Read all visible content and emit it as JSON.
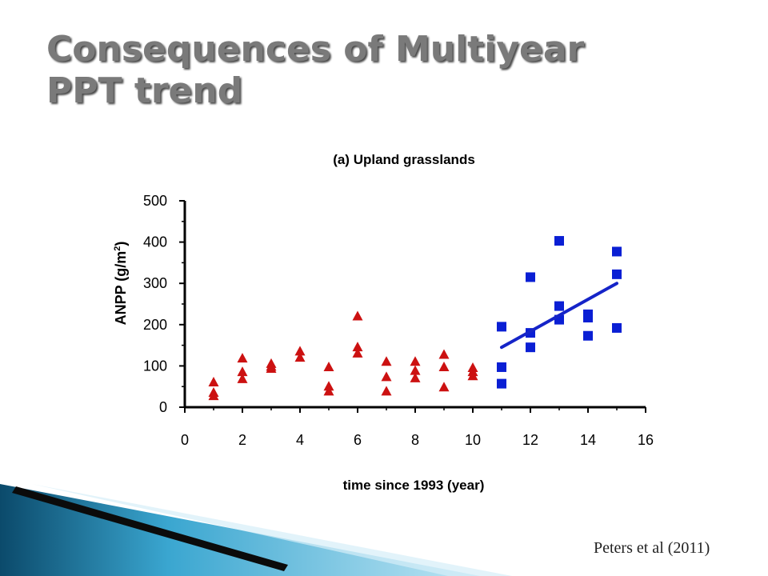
{
  "slide": {
    "title_line1": "Consequences of Multiyear",
    "title_line2": "PPT trend",
    "citation": "Peters et al (2011)"
  },
  "colors": {
    "title": "#7a7a7a",
    "series_triangles": "#cc1111",
    "series_squares": "#0a1fd4",
    "trend_line": "#1524c8",
    "axis": "#000000",
    "ribbon_dark": "#0b3d57",
    "ribbon_light": "#8fd0ea"
  },
  "chart_data": {
    "type": "scatter",
    "title": "(a) Upland grasslands",
    "xlabel": "time since 1993 (year)",
    "ylabel_main": "ANPP (g/m",
    "ylabel_sup": "2",
    "ylabel_close": ")",
    "xlim": [
      0,
      16
    ],
    "ylim": [
      0,
      500
    ],
    "xticks": [
      0,
      2,
      4,
      6,
      8,
      10,
      12,
      14,
      16
    ],
    "yticks": [
      0,
      100,
      200,
      300,
      400,
      500
    ],
    "grid": false,
    "legend": "none",
    "series": [
      {
        "marker": "triangle",
        "points": [
          [
            1,
            60
          ],
          [
            1,
            35
          ],
          [
            1,
            27
          ],
          [
            2,
            118
          ],
          [
            2,
            85
          ],
          [
            2,
            68
          ],
          [
            3,
            105
          ],
          [
            3,
            98
          ],
          [
            3,
            93
          ],
          [
            4,
            135
          ],
          [
            4,
            120
          ],
          [
            5,
            97
          ],
          [
            5,
            50
          ],
          [
            5,
            38
          ],
          [
            6,
            220
          ],
          [
            6,
            145
          ],
          [
            6,
            130
          ],
          [
            7,
            110
          ],
          [
            7,
            73
          ],
          [
            7,
            38
          ],
          [
            8,
            110
          ],
          [
            8,
            88
          ],
          [
            8,
            70
          ],
          [
            9,
            127
          ],
          [
            9,
            97
          ],
          [
            9,
            48
          ],
          [
            10,
            95
          ],
          [
            10,
            85
          ],
          [
            10,
            75
          ]
        ]
      },
      {
        "marker": "square",
        "points": [
          [
            11,
            195
          ],
          [
            11,
            97
          ],
          [
            11,
            57
          ],
          [
            12,
            315
          ],
          [
            12,
            180
          ],
          [
            12,
            145
          ],
          [
            13,
            403
          ],
          [
            13,
            245
          ],
          [
            13,
            212
          ],
          [
            14,
            225
          ],
          [
            14,
            217
          ],
          [
            14,
            173
          ],
          [
            15,
            377
          ],
          [
            15,
            322
          ],
          [
            15,
            192
          ]
        ],
        "trend": [
          [
            11,
            145
          ],
          [
            15,
            300
          ]
        ]
      }
    ]
  }
}
